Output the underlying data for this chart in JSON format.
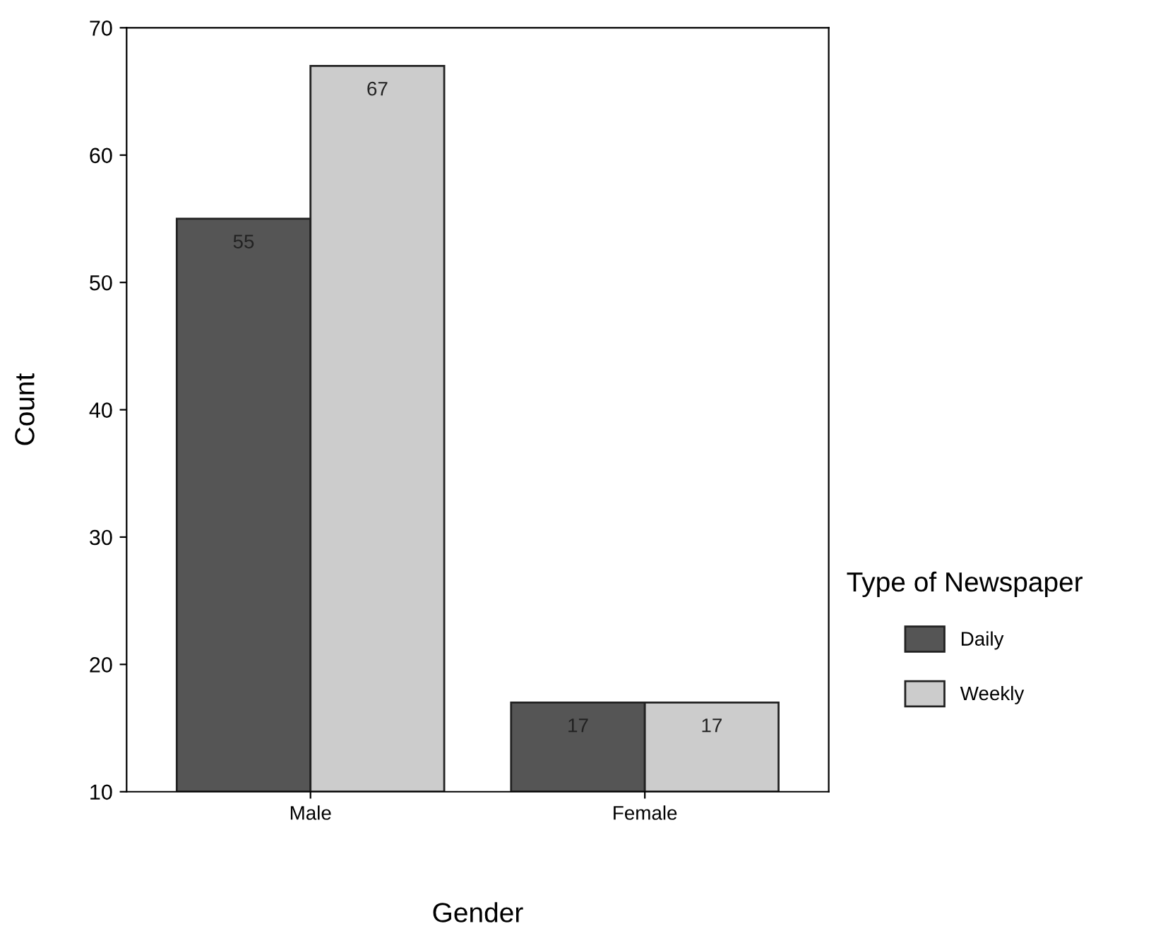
{
  "chart_data": {
    "type": "bar",
    "xlabel": "Gender",
    "ylabel": "Count",
    "legend_title": "Type of Newspaper",
    "categories": [
      "Male",
      "Female"
    ],
    "series": [
      {
        "name": "Daily",
        "color": "#555555",
        "values": [
          55,
          17
        ]
      },
      {
        "name": "Weekly",
        "color": "#cccccc",
        "values": [
          67,
          17
        ]
      }
    ],
    "ylim": [
      10,
      70
    ],
    "yticks": [
      10,
      20,
      30,
      40,
      50,
      60,
      70
    ],
    "data_labels": true,
    "grid": false,
    "legend": "right"
  }
}
